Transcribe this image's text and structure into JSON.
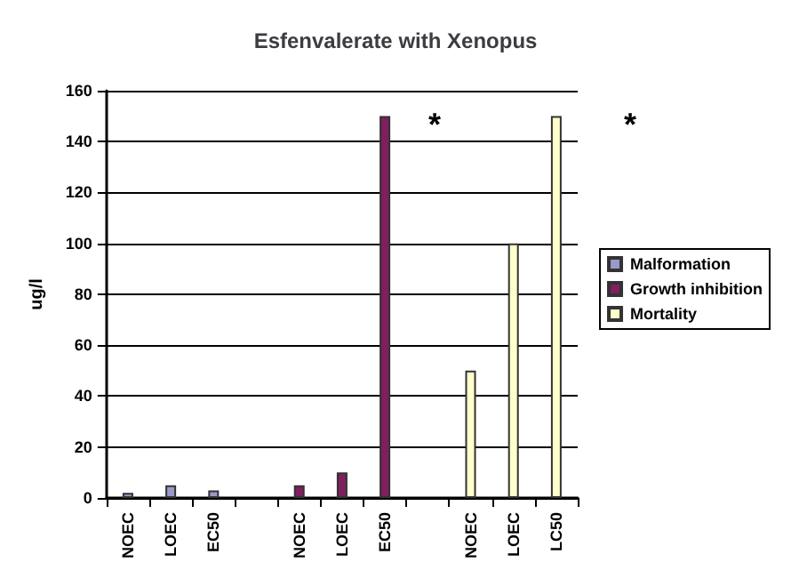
{
  "chart_data": {
    "type": "bar",
    "title": "Esfenvalerate with Xenopus",
    "ylabel": "ug/l",
    "categories": [
      "NOEC",
      "LOEC",
      "EC50",
      null,
      "NOEC",
      "LOEC",
      "EC50",
      null,
      "NOEC",
      "LOEC",
      "LC50"
    ],
    "series": [
      {
        "name": "Malformation",
        "color": "#9999cc",
        "values": [
          2,
          5,
          3,
          null,
          null,
          null,
          null,
          null,
          null,
          null,
          null
        ]
      },
      {
        "name": "Growth inhibition",
        "color": "#7f1f5f",
        "values": [
          null,
          null,
          null,
          null,
          5,
          10,
          150,
          null,
          null,
          null,
          null
        ]
      },
      {
        "name": "Mortality",
        "color": "#ffffcc",
        "values": [
          null,
          null,
          null,
          null,
          null,
          null,
          null,
          null,
          50,
          100,
          150
        ]
      }
    ],
    "annotations": [
      "*",
      "*"
    ],
    "ylim": [
      0,
      160
    ],
    "yticks": [
      0,
      20,
      40,
      60,
      80,
      100,
      120,
      140,
      160
    ],
    "grid": "y",
    "legend": "right"
  }
}
